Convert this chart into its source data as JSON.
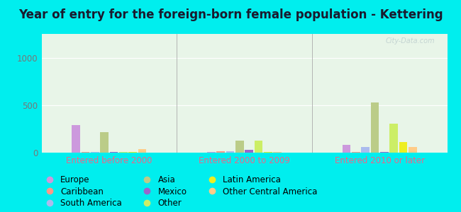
{
  "title": "Year of entry for the foreign-born female population - Kettering",
  "groups": [
    "Entered before 2000",
    "Entered 2000 to 2009",
    "Entered 2010 or later"
  ],
  "categories": [
    "Europe",
    "Caribbean",
    "South America",
    "Asia",
    "Mexico",
    "Other",
    "Latin America",
    "Other Central America"
  ],
  "colors": {
    "Europe": "#cc99dd",
    "Caribbean": "#ff9988",
    "South America": "#aabbee",
    "Asia": "#bbcc88",
    "Mexico": "#9966cc",
    "Other": "#ccee66",
    "Latin America": "#eeee22",
    "Other Central America": "#ffcc88"
  },
  "values": {
    "Entered before 2000": {
      "Europe": 290,
      "Caribbean": 5,
      "South America": 10,
      "Asia": 215,
      "Mexico": 5,
      "Other": 10,
      "Latin America": 10,
      "Other Central America": 40
    },
    "Entered 2000 to 2009": {
      "Europe": 10,
      "Caribbean": 15,
      "South America": 15,
      "Asia": 130,
      "Mexico": 30,
      "Other": 130,
      "Latin America": 10,
      "Other Central America": 10
    },
    "Entered 2010 or later": {
      "Europe": 80,
      "Caribbean": 10,
      "South America": 60,
      "Asia": 530,
      "Mexico": 10,
      "Other": 305,
      "Latin America": 110,
      "Other Central America": 60
    }
  },
  "ylim": [
    0,
    1250
  ],
  "yticks": [
    0,
    500,
    1000
  ],
  "background_color": "#00eeee",
  "plot_bg_color": "#e8f5e8",
  "watermark": "City-Data.com",
  "title_fontsize": 12,
  "tick_fontsize": 8.5,
  "legend_fontsize": 8.5,
  "title_color": "#1a1a2e",
  "tick_color": "#777777",
  "xlabel_color": "#ee6688"
}
